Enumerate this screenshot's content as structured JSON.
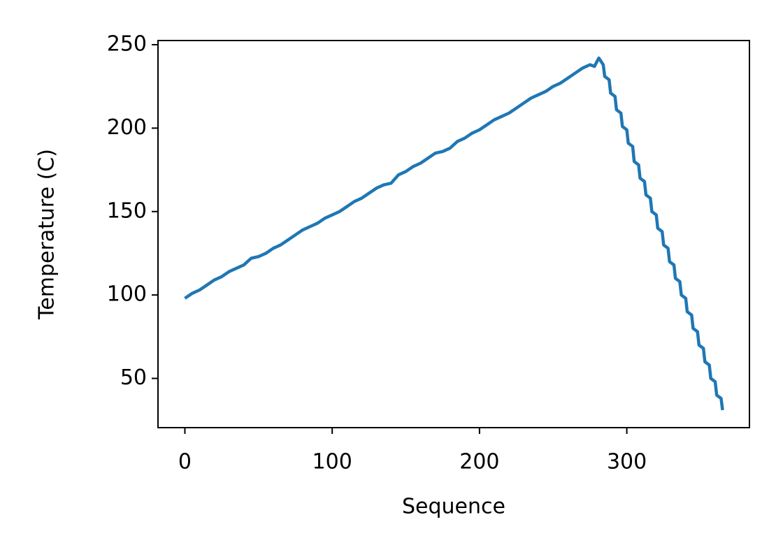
{
  "chart_data": {
    "type": "line",
    "x_label": "Sequence",
    "y_label": "Temperature (C)",
    "x": [
      0,
      5,
      10,
      15,
      20,
      25,
      30,
      35,
      40,
      45,
      50,
      55,
      60,
      65,
      70,
      75,
      80,
      85,
      90,
      95,
      100,
      105,
      110,
      115,
      120,
      125,
      130,
      135,
      140,
      145,
      150,
      155,
      160,
      165,
      170,
      175,
      180,
      185,
      190,
      195,
      200,
      205,
      210,
      215,
      220,
      225,
      230,
      235,
      240,
      245,
      250,
      255,
      260,
      265,
      270,
      275,
      278,
      281,
      284,
      285,
      288,
      289,
      292,
      293,
      296,
      297,
      300,
      301,
      304,
      305,
      308,
      309,
      312,
      313,
      316,
      317,
      320,
      321,
      324,
      325,
      328,
      329,
      332,
      333,
      336,
      337,
      340,
      341,
      344,
      345,
      348,
      349,
      352,
      353,
      356,
      357,
      360,
      361,
      364,
      365
    ],
    "series": [
      {
        "name": "Temperature",
        "color": "#1f77b4",
        "values": [
          98,
          101,
          103,
          106,
          109,
          111,
          114,
          116,
          118,
          122,
          123,
          125,
          128,
          130,
          133,
          136,
          139,
          141,
          143,
          146,
          148,
          150,
          153,
          156,
          158,
          161,
          164,
          166,
          167,
          172,
          174,
          177,
          179,
          182,
          185,
          186,
          188,
          192,
          194,
          197,
          199,
          202,
          205,
          207,
          209,
          212,
          215,
          218,
          220,
          222,
          225,
          227,
          230,
          233,
          236,
          238,
          237,
          242,
          238,
          231,
          229,
          221,
          219,
          211,
          209,
          201,
          199,
          191,
          189,
          180,
          178,
          170,
          168,
          160,
          158,
          150,
          148,
          140,
          138,
          130,
          128,
          120,
          118,
          110,
          108,
          100,
          98,
          90,
          88,
          80,
          78,
          70,
          68,
          60,
          58,
          50,
          48,
          40,
          38,
          31
        ]
      }
    ],
    "xlim": [
      -18.25,
      383.25
    ],
    "ylim": [
      20.5,
      252.5
    ],
    "xticks": [
      0,
      100,
      200,
      300
    ],
    "yticks": [
      50,
      100,
      150,
      200,
      250
    ]
  }
}
